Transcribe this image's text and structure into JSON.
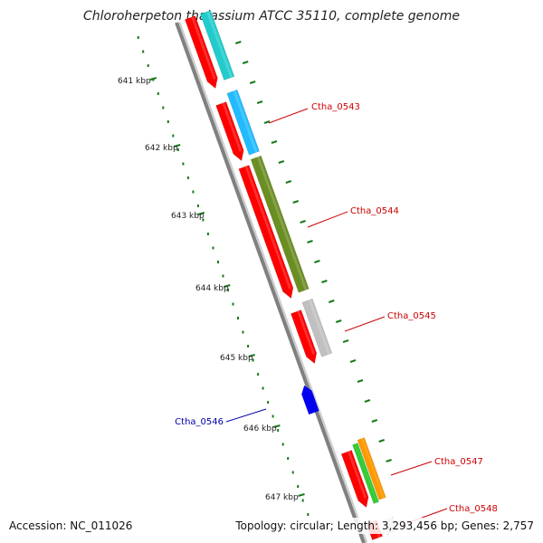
{
  "title": "Chloroherpeton thalassium ATCC 35110, complete genome",
  "footer": {
    "accession": "Accession: NC_011026",
    "summary": "Topology: circular; Length: 3,293,456 bp; Genes: 2,757"
  },
  "colors": {
    "backbone": "#808080",
    "cds": "#ff0000",
    "tick": "#1a7a1a",
    "ticklabel": "#222222",
    "label_red": "#cc0000",
    "label_blue": "#0000aa",
    "cyan": "#22cccc",
    "skyblue": "#22bbff",
    "olive": "#6b8e23",
    "grey": "#c0c0c0",
    "blue": "#0000ee",
    "green": "#33cc33",
    "orange": "#ff9900"
  },
  "ruler": {
    "labels": [
      "641 kbp",
      "642 kbp",
      "643 kbp",
      "644 kbp",
      "645 kbp",
      "646 kbp",
      "647 kbp"
    ]
  },
  "genes": [
    {
      "label": "Ctha_0543",
      "color": "label_red"
    },
    {
      "label": "Ctha_0544",
      "color": "label_red"
    },
    {
      "label": "Ctha_0545",
      "color": "label_red"
    },
    {
      "label": "Ctha_0546",
      "color": "label_blue"
    },
    {
      "label": "Ctha_0547",
      "color": "label_red"
    },
    {
      "label": "Ctha_0548",
      "color": "label_red"
    }
  ]
}
